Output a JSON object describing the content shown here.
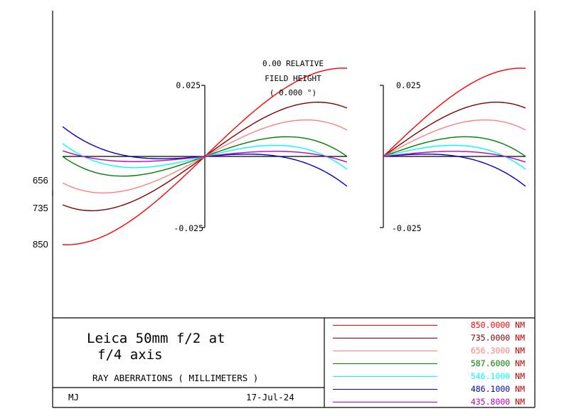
{
  "chart_data": {
    "type": "line",
    "field_label": {
      "line1": "0.00 RELATIVE",
      "line2": "FIELD HEIGHT",
      "line3": "( 0.000 )"
    },
    "panels": [
      {
        "name": "tangential",
        "x_range": [
          -1,
          1
        ],
        "ylim": [
          -0.025,
          0.025
        ],
        "y_top_label": "0.025",
        "y_bottom_label": "-0.025"
      },
      {
        "name": "sagittal",
        "x_range": [
          0,
          1
        ],
        "ylim": [
          -0.025,
          0.025
        ],
        "y_top_label": "0.025",
        "y_bottom_label": "-0.025"
      }
    ],
    "series": [
      {
        "name": "850.0000 NM",
        "color": "#ff0000",
        "a": 0.048,
        "b": -0.017
      },
      {
        "name": "735.0000 NM",
        "color": "#800000",
        "a": 0.036,
        "b": -0.019
      },
      {
        "name": "656.3000 NM",
        "color": "#ff8080",
        "a": 0.027,
        "b": -0.0177
      },
      {
        "name": "587.6000 NM",
        "color": "#008000",
        "a": 0.018,
        "b": -0.018
      },
      {
        "name": "546.1000 NM",
        "color": "#00ffff",
        "a": 0.012,
        "b": -0.0165
      },
      {
        "name": "486.1000 NM",
        "color": "#0000c0",
        "a": 0.004,
        "b": -0.0145
      },
      {
        "name": "435.8000 NM",
        "color": "#c000c0",
        "a": 0.0055,
        "b": -0.0075
      }
    ],
    "side_labels": [
      "656",
      "735",
      "850"
    ]
  },
  "title": {
    "line1": "Leica 50mm f/2 at",
    "line2": "f/4 axis"
  },
  "subtitle": "RAY ABERRATIONS ( MILLIMETERS )",
  "footer": {
    "initials": "MJ",
    "date": "17-Jul-24"
  }
}
